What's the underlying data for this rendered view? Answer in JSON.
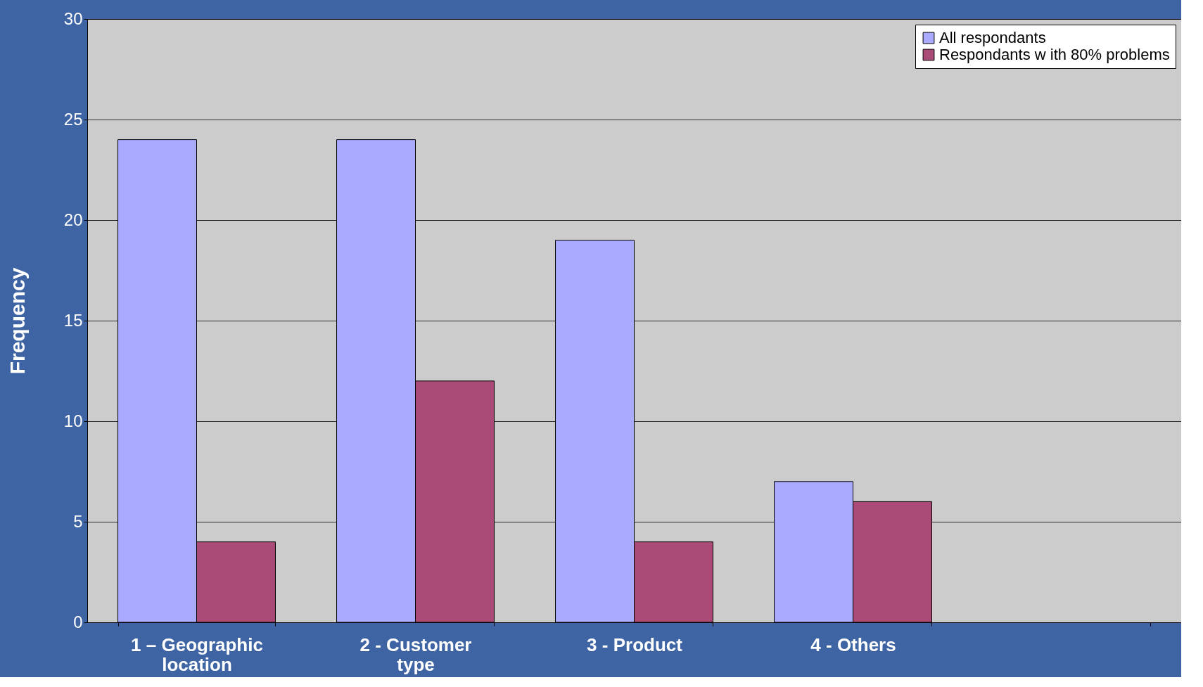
{
  "chart_data": {
    "type": "bar",
    "ylabel": "Frequency",
    "categories": [
      "1 – Geographic location",
      "2 - Customer type",
      "3 - Product",
      "4 - Others",
      null
    ],
    "series": [
      {
        "name": "All respondants",
        "color": "#aaaaff",
        "values": [
          24,
          24,
          19,
          7,
          null
        ]
      },
      {
        "name": "Respondants w ith 80% problems",
        "color": "#aa4a77",
        "values": [
          4,
          12,
          4,
          6,
          null
        ]
      }
    ],
    "ylim": [
      0,
      30
    ],
    "yticks": [
      0,
      5,
      10,
      15,
      20,
      25,
      30
    ],
    "grid": "y",
    "legend": "top right"
  }
}
